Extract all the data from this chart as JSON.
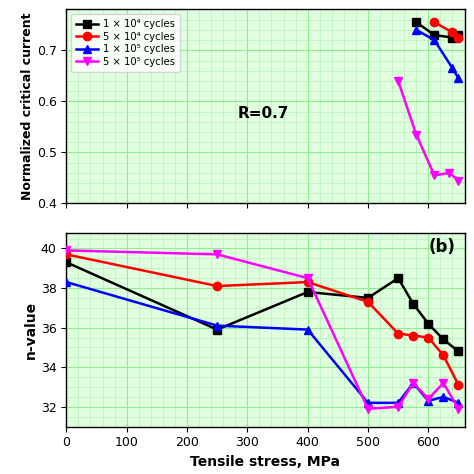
{
  "top": {
    "xlabel": "Tensile stress, MPa",
    "ylabel": "Normalized critical current",
    "annotation": "R=0.7",
    "xlim": [
      0,
      660
    ],
    "ylim": [
      0.4,
      0.78
    ],
    "yticks": [
      0.4,
      0.5,
      0.6,
      0.7
    ],
    "xticks": [
      0,
      100,
      200,
      300,
      400,
      500,
      600
    ],
    "series": {
      "black_square": {
        "x": [
          580,
          610,
          640,
          650
        ],
        "y": [
          0.755,
          0.73,
          0.725,
          0.73
        ]
      },
      "red_circle": {
        "x": [
          610,
          640,
          650
        ],
        "y": [
          0.755,
          0.735,
          0.725
        ]
      },
      "blue_triangle_up": {
        "x": [
          580,
          610,
          640,
          650
        ],
        "y": [
          0.74,
          0.72,
          0.665,
          0.645
        ]
      },
      "magenta_triangle_down": {
        "x": [
          550,
          580,
          610,
          635,
          650
        ],
        "y": [
          0.64,
          0.535,
          0.455,
          0.46,
          0.445
        ]
      }
    }
  },
  "bottom": {
    "ylabel": "n-value",
    "label_b": "(b)",
    "xlim": [
      0,
      660
    ],
    "ylim": [
      31.0,
      40.8
    ],
    "yticks": [
      32,
      34,
      36,
      38,
      40
    ],
    "xticks": [
      0,
      100,
      200,
      300,
      400,
      500,
      600
    ],
    "series": {
      "black_square": {
        "x": [
          0,
          250,
          400,
          500,
          550,
          575,
          600,
          625,
          650
        ],
        "y": [
          39.3,
          35.9,
          37.8,
          37.5,
          38.5,
          37.2,
          36.2,
          35.4,
          34.8
        ]
      },
      "red_circle": {
        "x": [
          0,
          250,
          400,
          500,
          550,
          575,
          600,
          625,
          650
        ],
        "y": [
          39.7,
          38.1,
          38.3,
          37.3,
          35.7,
          35.6,
          35.5,
          34.6,
          33.1
        ]
      },
      "blue_triangle_up": {
        "x": [
          0,
          250,
          400,
          500,
          550,
          575,
          600,
          625,
          650
        ],
        "y": [
          38.3,
          36.1,
          35.9,
          32.2,
          32.2,
          33.2,
          32.3,
          32.5,
          32.2
        ]
      },
      "magenta_triangle_down": {
        "x": [
          0,
          250,
          400,
          500,
          550,
          575,
          600,
          625,
          650
        ],
        "y": [
          39.9,
          39.7,
          38.5,
          31.9,
          32.0,
          33.2,
          32.4,
          33.2,
          31.9
        ]
      }
    }
  },
  "legend": {
    "labels": [
      "1 × 10⁴ cycles",
      "5 × 10⁴ cycles",
      "1 × 10⁵ cycles",
      "5 × 10⁵ cycles"
    ],
    "colors": [
      "black",
      "red",
      "blue",
      "magenta"
    ],
    "markers": [
      "s",
      "o",
      "^",
      "v"
    ]
  },
  "grid_major_color": "#90ee90",
  "grid_minor_color": "#b8f0b8",
  "bg_color": "#dfffdf",
  "figsize": [
    4.74,
    4.74
  ],
  "dpi": 100
}
